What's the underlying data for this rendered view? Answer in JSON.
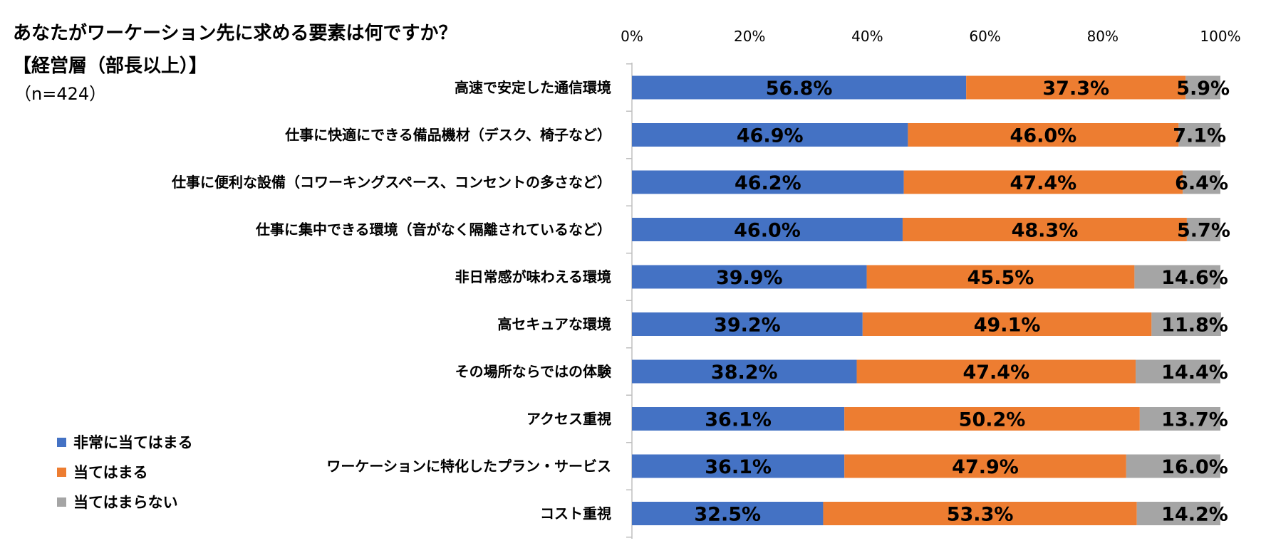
{
  "chart_data": {
    "type": "stacked-bar-horizontal",
    "title": "あなたがワーケーション先に求める要素は何ですか？",
    "subtitle": "【経営層（部長以上）】",
    "sample": "（n=424）",
    "xlim": [
      0,
      100
    ],
    "x_ticks": [
      "0%",
      "20%",
      "40%",
      "60%",
      "80%",
      "100%"
    ],
    "legend_position": "left-bottom",
    "categories": [
      "高速で安定した通信環境",
      "仕事に快適にできる備品機材（デスク、椅子など）",
      "仕事に便利な設備（コワーキングスペース、コンセントの多さなど）",
      "仕事に集中できる環境（音がなく隔離されているなど）",
      "非日常感が味わえる環境",
      "高セキュアな環境",
      "その場所ならではの体験",
      "アクセス重視",
      "ワーケーションに特化したプラン・サービス",
      "コスト重視"
    ],
    "series": [
      {
        "name": "非常に当てはまる",
        "color": "#4472C4",
        "values": [
          56.8,
          46.9,
          46.2,
          46.0,
          39.9,
          39.2,
          38.2,
          36.1,
          36.1,
          32.5
        ],
        "labels": [
          "56.8%",
          "46.9%",
          "46.2%",
          "46.0%",
          "39.9%",
          "39.2%",
          "38.2%",
          "36.1%",
          "36.1%",
          "32.5%"
        ]
      },
      {
        "name": "当てはまる",
        "color": "#ED7D31",
        "values": [
          37.3,
          46.0,
          47.4,
          48.3,
          45.5,
          49.1,
          47.4,
          50.2,
          47.9,
          53.3
        ],
        "labels": [
          "37.3%",
          "46.0%",
          "47.4%",
          "48.3%",
          "45.5%",
          "49.1%",
          "47.4%",
          "50.2%",
          "47.9%",
          "53.3%"
        ]
      },
      {
        "name": "当てはまらない",
        "color": "#A5A5A5",
        "values": [
          5.9,
          7.1,
          6.4,
          5.7,
          14.6,
          11.8,
          14.4,
          13.7,
          16.0,
          14.2
        ],
        "labels": [
          "5.9%",
          "7.1%",
          "6.4%",
          "5.7%",
          "14.6%",
          "11.8%",
          "14.4%",
          "13.7%",
          "16.0%",
          "14.2%"
        ]
      }
    ]
  }
}
